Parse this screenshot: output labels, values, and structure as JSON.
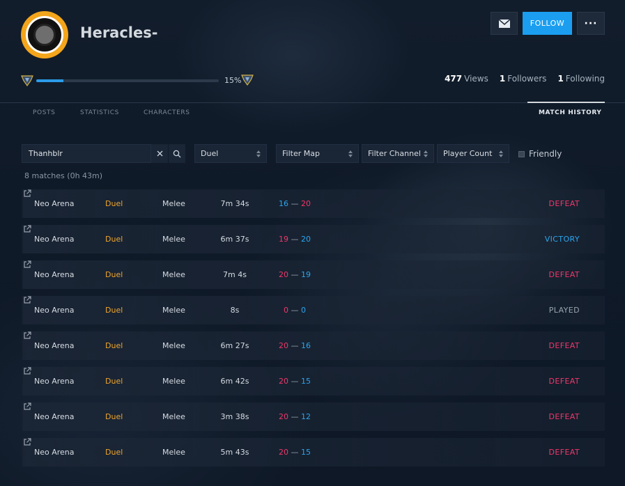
{
  "profile": {
    "username": "Heracles-",
    "progress_text": "15%",
    "progress_value": 0.15,
    "views_count": "477",
    "views_label": "Views",
    "followers_count": "1",
    "followers_label": "Followers",
    "following_count": "1",
    "following_label": "Following"
  },
  "actions": {
    "follow_label": "FOLLOW",
    "more_label": "···"
  },
  "tabs": [
    {
      "label": "POSTS"
    },
    {
      "label": "STATISTICS"
    },
    {
      "label": "CHARACTERS"
    },
    {
      "label": "MATCH HISTORY",
      "active": true
    }
  ],
  "filters": {
    "search_value": "Thanhblr",
    "mode": "Duel",
    "map": "Filter Map",
    "channel": "Filter Channel",
    "player_count": "Player Count",
    "friendly_label": "Friendly"
  },
  "summary": "8 matches (0h 43m)",
  "colors": {
    "win": "#2ba6ee",
    "loss": "#f0386a",
    "accent": "#1b9ef0",
    "mode": "#f0a52b"
  },
  "matches": [
    {
      "map": "Neo Arena",
      "mode": "Duel",
      "channel": "Melee",
      "duration": "7m 34s",
      "score_a": "16",
      "score_b": "20",
      "result": "DEFEAT"
    },
    {
      "map": "Neo Arena",
      "mode": "Duel",
      "channel": "Melee",
      "duration": "6m 37s",
      "score_a": "19",
      "score_b": "20",
      "result": "VICTORY"
    },
    {
      "map": "Neo Arena",
      "mode": "Duel",
      "channel": "Melee",
      "duration": "7m 4s",
      "score_a": "20",
      "score_b": "19",
      "result": "DEFEAT"
    },
    {
      "map": "Neo Arena",
      "mode": "Duel",
      "channel": "Melee",
      "duration": "8s",
      "score_a": "0",
      "score_b": "0",
      "result": "PLAYED"
    },
    {
      "map": "Neo Arena",
      "mode": "Duel",
      "channel": "Melee",
      "duration": "6m 27s",
      "score_a": "20",
      "score_b": "16",
      "result": "DEFEAT"
    },
    {
      "map": "Neo Arena",
      "mode": "Duel",
      "channel": "Melee",
      "duration": "6m 42s",
      "score_a": "20",
      "score_b": "15",
      "result": "DEFEAT"
    },
    {
      "map": "Neo Arena",
      "mode": "Duel",
      "channel": "Melee",
      "duration": "3m 38s",
      "score_a": "20",
      "score_b": "12",
      "result": "DEFEAT"
    },
    {
      "map": "Neo Arena",
      "mode": "Duel",
      "channel": "Melee",
      "duration": "5m 43s",
      "score_a": "20",
      "score_b": "15",
      "result": "DEFEAT"
    }
  ]
}
